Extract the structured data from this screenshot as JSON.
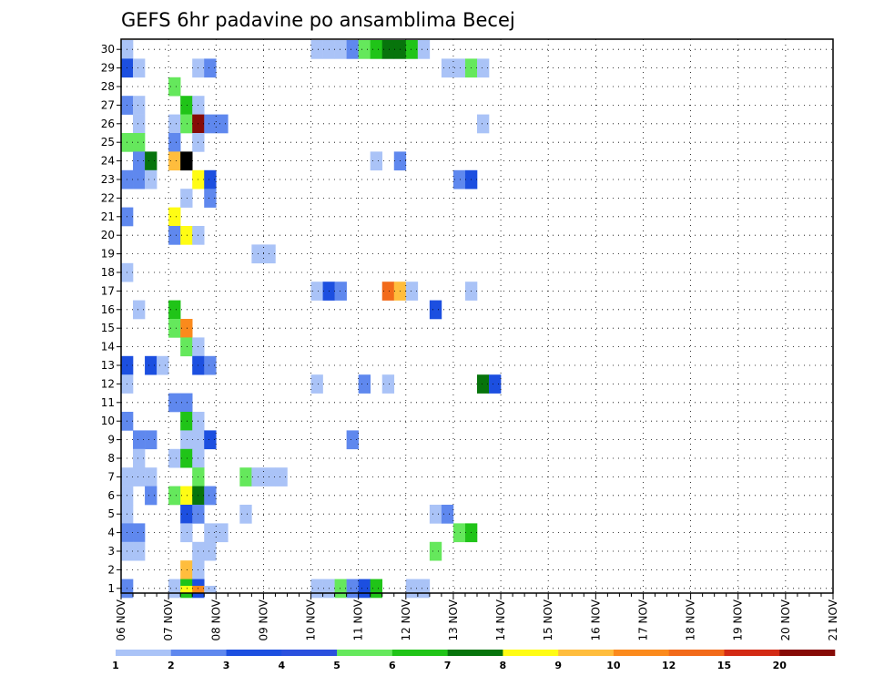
{
  "chart_data": {
    "type": "heatmap",
    "title": "GEFS 6hr padavine po ansamblima Becej",
    "y_categories": [
      1,
      2,
      3,
      4,
      5,
      6,
      7,
      8,
      9,
      10,
      11,
      12,
      13,
      14,
      15,
      16,
      17,
      18,
      19,
      20,
      21,
      22,
      23,
      24,
      25,
      26,
      27,
      28,
      29,
      30
    ],
    "x_tick_labels": [
      "06 NOV",
      "07 NOV",
      "08 NOV",
      "09 NOV",
      "10 NOV",
      "11 NOV",
      "12 NOV",
      "13 NOV",
      "14 NOV",
      "15 NOV",
      "16 NOV",
      "17 NOV",
      "18 NOV",
      "19 NOV",
      "20 NOV",
      "21 NOV"
    ],
    "x_steps_per_day": 4,
    "x_range": [
      "06 NOV 00Z",
      "21 NOV 00Z"
    ],
    "grid": true,
    "colorbar": {
      "labels": [
        "1",
        "2",
        "3",
        "4",
        "5",
        "6",
        "7",
        "8",
        "9",
        "10",
        "12",
        "15",
        "20"
      ],
      "colors": [
        "#aac3f7",
        "#5f88ee",
        "#1c4fe0",
        "#2a50de",
        "#65e85c",
        "#20c418",
        "#07740c",
        "#fffc14",
        "#ffbd3d",
        "#fb8a1c",
        "#f26a1a",
        "#d32a14",
        "#860b06"
      ]
    },
    "cells": [
      [
        0,
        30,
        1
      ],
      [
        16,
        30,
        1
      ],
      [
        17,
        30,
        1
      ],
      [
        18,
        30,
        1
      ],
      [
        19,
        30,
        2
      ],
      [
        20,
        30,
        5
      ],
      [
        21,
        30,
        6
      ],
      [
        22,
        30,
        7
      ],
      [
        23,
        30,
        7
      ],
      [
        24,
        30,
        6
      ],
      [
        25,
        30,
        1
      ],
      [
        0,
        29,
        3
      ],
      [
        1,
        29,
        1
      ],
      [
        6,
        29,
        1
      ],
      [
        7,
        29,
        2
      ],
      [
        27,
        29,
        1
      ],
      [
        28,
        29,
        1
      ],
      [
        29,
        29,
        5
      ],
      [
        30,
        29,
        1
      ],
      [
        4,
        28,
        5
      ],
      [
        0,
        27,
        2
      ],
      [
        1,
        27,
        1
      ],
      [
        5,
        27,
        6
      ],
      [
        6,
        27,
        1
      ],
      [
        1,
        26,
        1
      ],
      [
        4,
        26,
        1
      ],
      [
        5,
        26,
        5
      ],
      [
        6,
        26,
        13
      ],
      [
        7,
        26,
        2
      ],
      [
        8,
        26,
        2
      ],
      [
        30,
        26,
        1
      ],
      [
        0,
        25,
        5
      ],
      [
        1,
        25,
        5
      ],
      [
        4,
        25,
        2
      ],
      [
        6,
        25,
        1
      ],
      [
        1,
        24,
        2
      ],
      [
        2,
        24,
        7
      ],
      [
        4,
        24,
        9
      ],
      [
        5,
        24,
        14
      ],
      [
        21,
        24,
        1
      ],
      [
        23,
        24,
        2
      ],
      [
        0,
        23,
        2
      ],
      [
        1,
        23,
        2
      ],
      [
        2,
        23,
        1
      ],
      [
        6,
        23,
        8
      ],
      [
        7,
        23,
        3
      ],
      [
        28,
        23,
        2
      ],
      [
        29,
        23,
        3
      ],
      [
        5,
        22,
        1
      ],
      [
        7,
        22,
        2
      ],
      [
        0,
        21,
        2
      ],
      [
        4,
        21,
        8
      ],
      [
        4,
        20,
        2
      ],
      [
        5,
        20,
        8
      ],
      [
        6,
        20,
        1
      ],
      [
        11,
        19,
        1
      ],
      [
        12,
        19,
        1
      ],
      [
        0,
        18,
        1
      ],
      [
        16,
        17,
        1
      ],
      [
        17,
        17,
        3
      ],
      [
        18,
        17,
        2
      ],
      [
        22,
        17,
        11
      ],
      [
        23,
        17,
        9
      ],
      [
        24,
        17,
        1
      ],
      [
        29,
        17,
        1
      ],
      [
        1,
        16,
        1
      ],
      [
        4,
        16,
        6
      ],
      [
        26,
        16,
        3
      ],
      [
        4,
        15,
        5
      ],
      [
        5,
        15,
        10
      ],
      [
        5,
        14,
        5
      ],
      [
        6,
        14,
        1
      ],
      [
        0,
        13,
        3
      ],
      [
        2,
        13,
        3
      ],
      [
        3,
        13,
        1
      ],
      [
        6,
        13,
        3
      ],
      [
        7,
        13,
        2
      ],
      [
        0,
        12,
        1
      ],
      [
        16,
        12,
        1
      ],
      [
        20,
        12,
        2
      ],
      [
        22,
        12,
        1
      ],
      [
        30,
        12,
        7
      ],
      [
        31,
        12,
        3
      ],
      [
        4,
        11,
        2
      ],
      [
        5,
        11,
        2
      ],
      [
        0,
        10,
        2
      ],
      [
        5,
        10,
        6
      ],
      [
        6,
        10,
        1
      ],
      [
        1,
        9,
        2
      ],
      [
        2,
        9,
        2
      ],
      [
        5,
        9,
        1
      ],
      [
        6,
        9,
        1
      ],
      [
        7,
        9,
        3
      ],
      [
        19,
        9,
        2
      ],
      [
        1,
        8,
        1
      ],
      [
        4,
        8,
        1
      ],
      [
        5,
        8,
        6
      ],
      [
        6,
        8,
        1
      ],
      [
        0,
        7,
        1
      ],
      [
        1,
        7,
        1
      ],
      [
        2,
        7,
        1
      ],
      [
        6,
        7,
        5
      ],
      [
        10,
        7,
        5
      ],
      [
        11,
        7,
        1
      ],
      [
        12,
        7,
        1
      ],
      [
        13,
        7,
        1
      ],
      [
        0,
        6,
        1
      ],
      [
        2,
        6,
        2
      ],
      [
        4,
        6,
        5
      ],
      [
        5,
        6,
        8
      ],
      [
        6,
        6,
        7
      ],
      [
        7,
        6,
        2
      ],
      [
        0,
        5,
        1
      ],
      [
        5,
        5,
        3
      ],
      [
        6,
        5,
        2
      ],
      [
        10,
        5,
        1
      ],
      [
        26,
        5,
        1
      ],
      [
        27,
        5,
        2
      ],
      [
        0,
        4,
        2
      ],
      [
        1,
        4,
        2
      ],
      [
        5,
        4,
        1
      ],
      [
        7,
        4,
        1
      ],
      [
        8,
        4,
        1
      ],
      [
        28,
        4,
        5
      ],
      [
        29,
        4,
        6
      ],
      [
        0,
        3,
        1
      ],
      [
        1,
        3,
        1
      ],
      [
        6,
        3,
        1
      ],
      [
        7,
        3,
        1
      ],
      [
        26,
        3,
        5
      ],
      [
        5,
        2,
        9
      ],
      [
        6,
        2,
        1
      ],
      [
        0,
        1,
        2
      ],
      [
        4,
        1,
        1
      ],
      [
        5,
        1,
        6
      ],
      [
        6,
        1,
        3
      ],
      [
        16,
        1,
        1
      ],
      [
        17,
        1,
        1
      ],
      [
        18,
        1,
        5
      ],
      [
        19,
        1,
        2
      ],
      [
        20,
        1,
        3
      ],
      [
        21,
        1,
        6
      ],
      [
        24,
        1,
        1
      ],
      [
        25,
        1,
        1
      ],
      [
        5,
        0,
        8
      ],
      [
        6,
        0,
        10
      ],
      [
        7,
        0,
        1
      ]
    ]
  }
}
